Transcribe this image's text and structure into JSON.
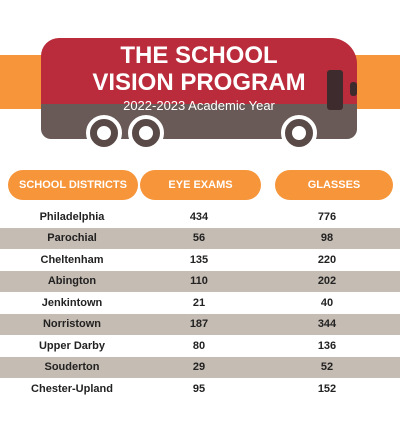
{
  "header": {
    "title_line1": "THE SCHOOL",
    "title_line2": "VISION PROGRAM",
    "subtitle": "2022-2023 Academic Year"
  },
  "table": {
    "columns": [
      "SCHOOL DISTRICTS",
      "EYE EXAMS",
      "GLASSES"
    ],
    "rows": [
      {
        "district": "Philadelphia",
        "eye_exams": "434",
        "glasses": "776"
      },
      {
        "district": "Parochial",
        "eye_exams": "56",
        "glasses": "98"
      },
      {
        "district": "Cheltenham",
        "eye_exams": "135",
        "glasses": "220"
      },
      {
        "district": "Abington",
        "eye_exams": "110",
        "glasses": "202"
      },
      {
        "district": "Jenkintown",
        "eye_exams": "21",
        "glasses": "40"
      },
      {
        "district": "Norristown",
        "eye_exams": "187",
        "glasses": "344"
      },
      {
        "district": "Upper Darby",
        "eye_exams": "80",
        "glasses": "136"
      },
      {
        "district": "Souderton",
        "eye_exams": "29",
        "glasses": "52"
      },
      {
        "district": "Chester-Upland",
        "eye_exams": "95",
        "glasses": "152"
      }
    ]
  },
  "colors": {
    "accent_orange": "#f6953a",
    "bus_red": "#ba2b3b",
    "bus_gray": "#6a5a57",
    "row_alt": "#c5bcb3"
  },
  "icons": [
    "school-bus-illustration"
  ]
}
